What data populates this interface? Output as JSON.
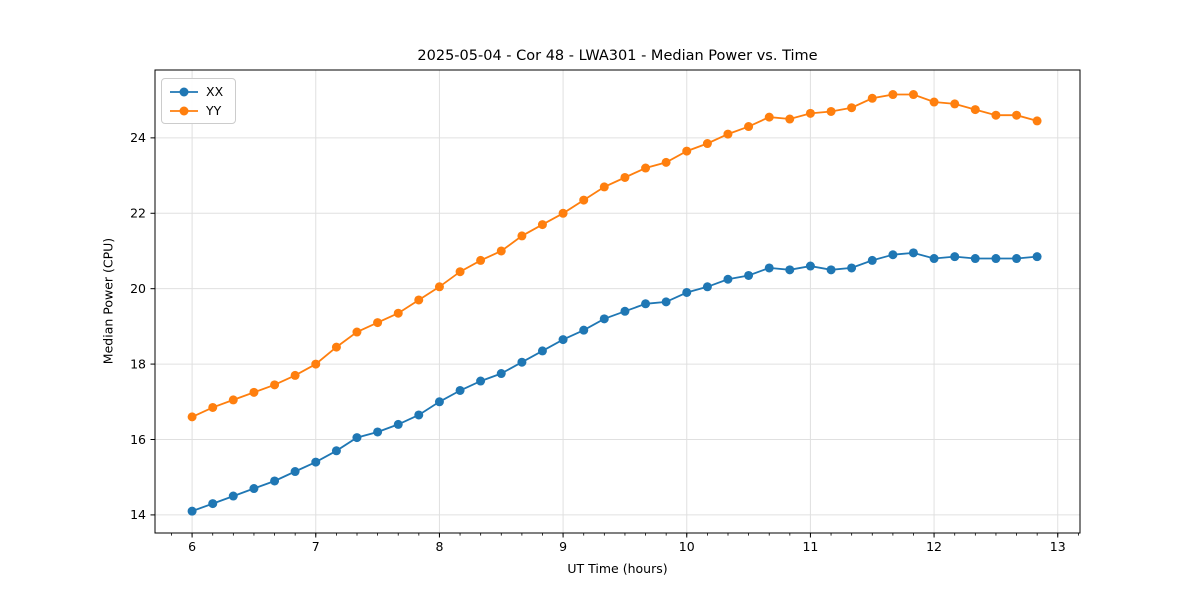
{
  "figure": {
    "background": "#ffffff",
    "text_color": "#000000"
  },
  "chart_data": {
    "type": "line",
    "title": "2025-05-04 - Cor 48 - LWA301 - Median Power vs. Time",
    "xlabel": "UT Time (hours)",
    "ylabel": "Median Power (CPU)",
    "xlim": [
      5.7,
      13.18
    ],
    "ylim": [
      13.52,
      25.8
    ],
    "grid": true,
    "grid_color": "#e0e0e0",
    "axis_color": "#000000",
    "legend_position": "upper-left",
    "x_ticks": {
      "values": [
        6,
        7,
        8,
        9,
        10,
        11,
        12,
        13
      ],
      "labels": [
        "6",
        "7",
        "8",
        "9",
        "10",
        "11",
        "12",
        "13"
      ],
      "minor_step": 0.16667
    },
    "y_ticks": {
      "values": [
        14,
        16,
        18,
        20,
        22,
        24
      ],
      "labels": [
        "14",
        "16",
        "18",
        "20",
        "22",
        "24"
      ]
    },
    "x": [
      6.0,
      6.167,
      6.333,
      6.5,
      6.667,
      6.833,
      7.0,
      7.167,
      7.333,
      7.5,
      7.667,
      7.833,
      8.0,
      8.167,
      8.333,
      8.5,
      8.667,
      8.833,
      9.0,
      9.167,
      9.333,
      9.5,
      9.667,
      9.833,
      10.0,
      10.167,
      10.333,
      10.5,
      10.667,
      10.833,
      11.0,
      11.167,
      11.333,
      11.5,
      11.667,
      11.833,
      12.0,
      12.167,
      12.333,
      12.5,
      12.667,
      12.833
    ],
    "series": [
      {
        "name": "XX",
        "color": "#1f77b4",
        "values": [
          14.1,
          14.3,
          14.5,
          14.7,
          14.9,
          15.15,
          15.4,
          15.7,
          16.05,
          16.2,
          16.4,
          16.65,
          17.0,
          17.3,
          17.55,
          17.75,
          18.05,
          18.35,
          18.65,
          18.9,
          19.2,
          19.4,
          19.6,
          19.65,
          19.9,
          20.05,
          20.25,
          20.35,
          20.55,
          20.5,
          20.6,
          20.5,
          20.55,
          20.75,
          20.9,
          20.95,
          20.8,
          20.85,
          20.8,
          20.8,
          20.8,
          20.85
        ]
      },
      {
        "name": "YY",
        "color": "#ff7f0e",
        "values": [
          16.6,
          16.85,
          17.05,
          17.25,
          17.45,
          17.7,
          18.0,
          18.45,
          18.85,
          19.1,
          19.35,
          19.7,
          20.05,
          20.45,
          20.75,
          21.0,
          21.4,
          21.7,
          22.0,
          22.35,
          22.7,
          22.95,
          23.2,
          23.35,
          23.65,
          23.85,
          24.1,
          24.3,
          24.55,
          24.5,
          24.65,
          24.7,
          24.8,
          25.05,
          25.15,
          25.15,
          24.95,
          24.9,
          24.75,
          24.6,
          24.6,
          24.45
        ]
      }
    ]
  }
}
